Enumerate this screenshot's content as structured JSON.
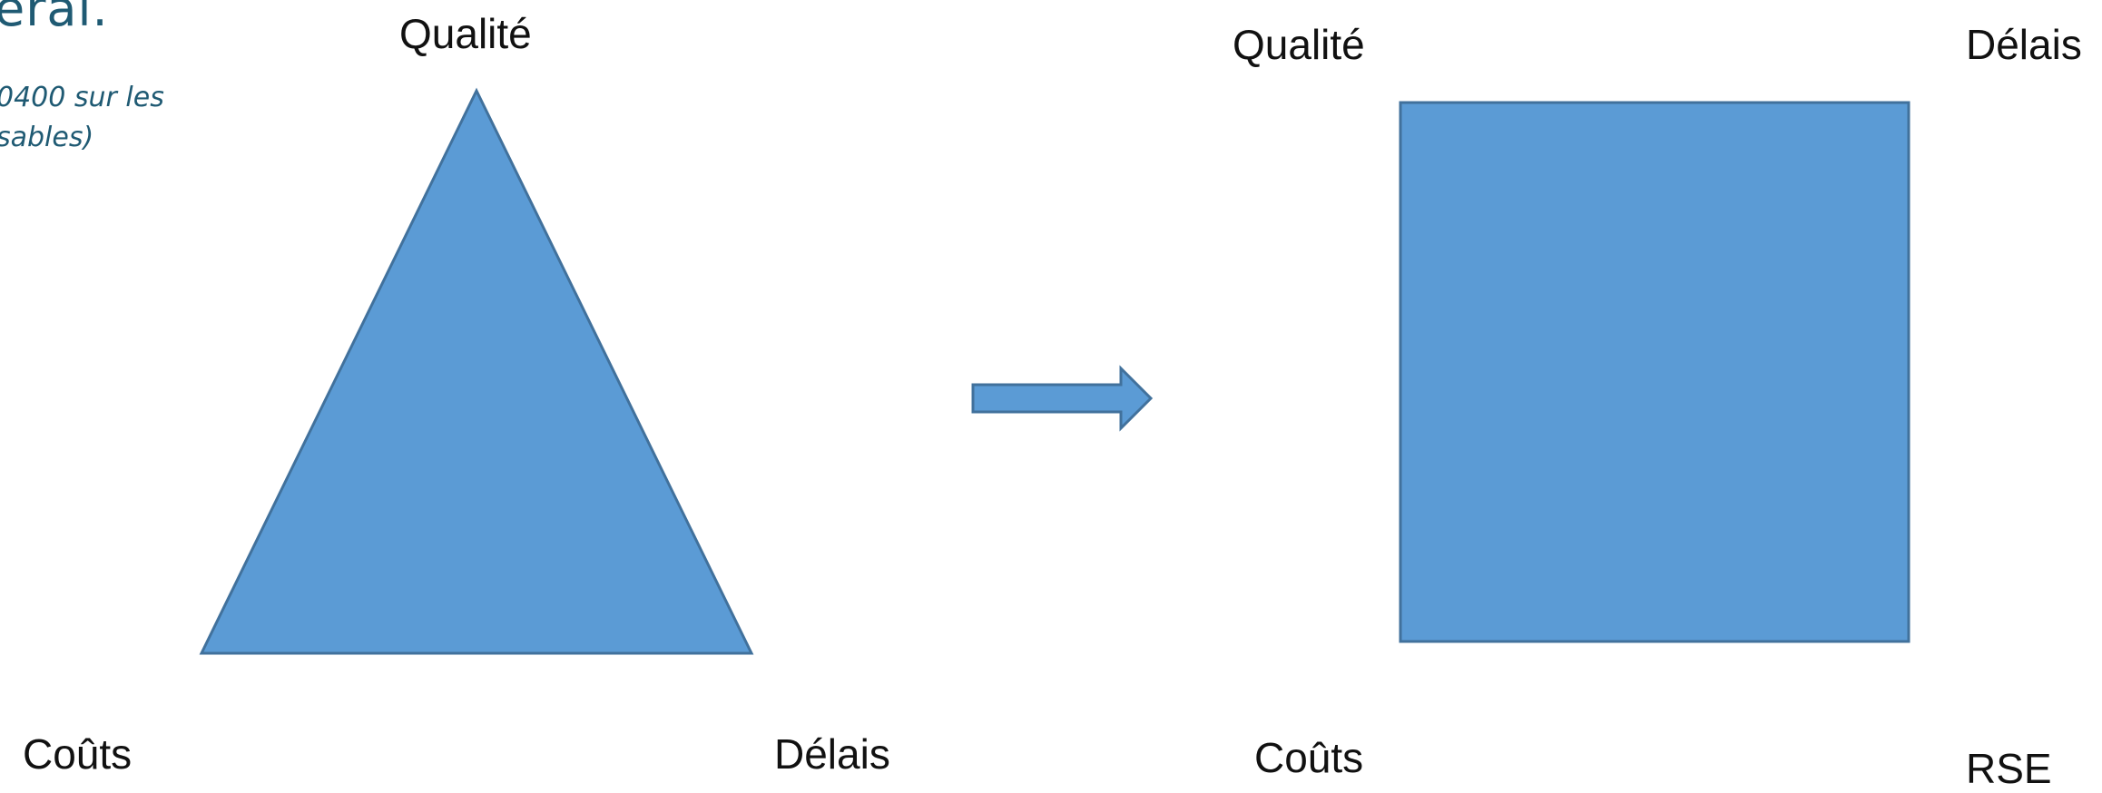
{
  "slide": {
    "heading_fragment": "eral.",
    "subtext_line1": "0400 sur les",
    "subtext_line2": "sables)"
  },
  "triangle": {
    "top_label": "Qualité",
    "bottom_left_label": "Coûts",
    "bottom_right_label": "Délais"
  },
  "square": {
    "top_left_label": "Qualité",
    "top_right_label": "Délais",
    "bottom_left_label": "Coûts",
    "bottom_right_label": "RSE"
  },
  "colors": {
    "shape_fill": "#5b9bd5",
    "shape_stroke": "#41719c",
    "heading_text": "#1f5a73",
    "label_text": "#111111"
  }
}
